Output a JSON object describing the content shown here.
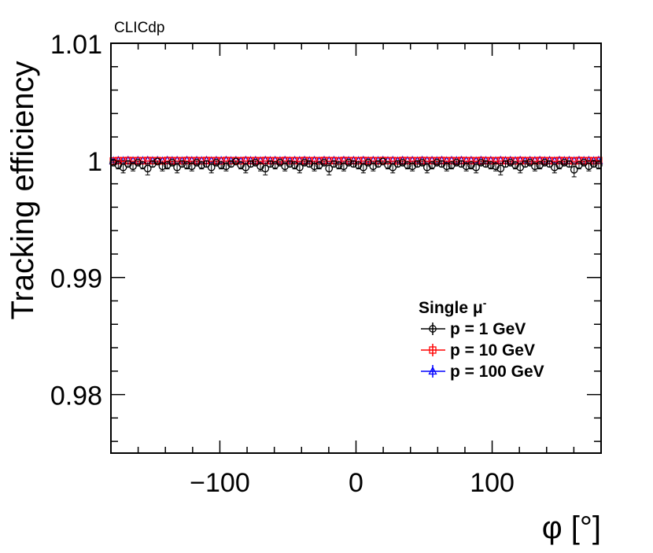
{
  "chart_data": {
    "type": "scatter",
    "experiment_label": "CLICdp",
    "xlabel": "φ [°]",
    "ylabel": "Tracking efficiency",
    "xlim": [
      -180,
      180
    ],
    "ylim": [
      0.975,
      1.01
    ],
    "x_ticks": [
      -100,
      0,
      100
    ],
    "x_tick_labels": [
      "−100",
      "0",
      "100"
    ],
    "y_ticks": [
      0.98,
      0.99,
      1.0,
      1.01
    ],
    "y_tick_labels": [
      "0.98",
      "0.99",
      "1",
      "1.01"
    ],
    "legend": {
      "title": "Single μ",
      "title_superscript": "-",
      "position": "center-right"
    },
    "bin_width_deg": 3.6,
    "series": [
      {
        "name": "p = 1 GeV",
        "color": "#000000",
        "marker": "open-circle",
        "values": [
          0.9998,
          0.9996,
          0.9994,
          0.9997,
          0.9995,
          0.9998,
          0.9996,
          0.9993,
          0.9997,
          0.9999,
          0.9995,
          0.9996,
          0.9998,
          0.9994,
          0.9997,
          0.9996,
          0.9995,
          0.9998,
          0.9996,
          0.9997,
          0.9994,
          0.9998,
          0.9996,
          0.9995,
          0.9997,
          0.9999,
          0.9996,
          0.9994,
          0.9997,
          0.9998,
          0.9995,
          0.9993,
          0.9997,
          0.9996,
          0.9998,
          0.9995,
          0.9997,
          0.9996,
          0.9994,
          0.9998,
          0.9997,
          0.9995,
          0.9996,
          0.9998,
          0.9993,
          0.9997,
          0.9996,
          0.9995,
          0.9998,
          0.9997,
          0.9996,
          0.9994,
          0.9998,
          0.9995,
          0.9997,
          0.9999,
          0.9996,
          0.9994,
          0.9997,
          0.9998,
          0.9996,
          0.9995,
          0.9997,
          0.9998,
          0.9994,
          0.9996,
          0.9998,
          0.9997,
          0.9995,
          0.9996,
          0.9998,
          0.9997,
          0.9995,
          0.9996,
          0.9994,
          0.9998,
          0.9997,
          0.9996,
          0.9995,
          0.9993,
          0.9997,
          0.9998,
          0.9996,
          0.9994,
          0.9997,
          0.9998,
          0.9995,
          0.9996,
          0.9998,
          0.9997,
          0.9994,
          0.9996,
          0.9998,
          0.9997,
          0.9992,
          0.9996,
          0.9998,
          0.9995,
          0.9997,
          0.9996
        ]
      },
      {
        "name": "p = 10 GeV",
        "color": "#ff0000",
        "marker": "open-square",
        "values": [
          0.99995,
          0.99998,
          0.99996,
          0.99999,
          0.99997,
          0.99998,
          0.99996,
          0.99999,
          0.99997,
          0.99998,
          0.99995,
          0.99999,
          0.99997,
          0.99998,
          0.99996,
          0.99999,
          0.99997,
          0.99998,
          0.99996,
          0.99999,
          0.99997,
          0.99998,
          0.99995,
          0.99999,
          0.99997,
          0.99998,
          0.99996,
          0.99999,
          0.99997,
          0.99998,
          0.99996,
          0.99999,
          0.99997,
          0.99998,
          0.99995,
          0.99999,
          0.99997,
          0.99998,
          0.99996,
          0.99999,
          0.99997,
          0.99998,
          0.99996,
          0.99999,
          0.99997,
          0.99998,
          0.99995,
          0.99999,
          0.99997,
          0.99998,
          0.99996,
          0.99999,
          0.99997,
          0.99998,
          0.99996,
          0.99999,
          0.99997,
          0.99998,
          0.99995,
          0.99999,
          0.99997,
          0.99998,
          0.99996,
          0.99999,
          0.99997,
          0.99998,
          0.99996,
          0.99999,
          0.99997,
          0.99998,
          0.99995,
          0.99999,
          0.99997,
          0.99998,
          0.99996,
          0.99999,
          0.99997,
          0.99998,
          0.99996,
          0.99999,
          0.99997,
          0.99998,
          0.99995,
          0.99999,
          0.99997,
          0.99998,
          0.99996,
          0.99999,
          0.99997,
          0.99998,
          0.99996,
          0.99999,
          0.99997,
          0.99998,
          0.99995,
          0.99999,
          0.99997,
          0.99998,
          0.99996,
          0.99999
        ]
      },
      {
        "name": "p = 100 GeV",
        "color": "#0000ff",
        "marker": "open-triangle",
        "values": [
          0.99993,
          0.99997,
          0.99995,
          0.99998,
          0.99994,
          0.99997,
          0.99996,
          0.99998,
          0.99995,
          0.99997,
          0.99993,
          0.99998,
          0.99996,
          0.99997,
          0.99994,
          0.99998,
          0.99996,
          0.99997,
          0.99995,
          0.99998,
          0.99994,
          0.99997,
          0.99996,
          0.99998,
          0.99995,
          0.99997,
          0.99993,
          0.99998,
          0.99996,
          0.99997,
          0.99994,
          0.99998,
          0.99996,
          0.99997,
          0.99995,
          0.99998,
          0.99994,
          0.99997,
          0.99996,
          0.99998,
          0.99995,
          0.99997,
          0.99993,
          0.99998,
          0.99996,
          0.99997,
          0.99994,
          0.99998,
          0.99996,
          0.99997,
          0.99995,
          0.99998,
          0.99994,
          0.99997,
          0.99996,
          0.99998,
          0.99995,
          0.99997,
          0.99993,
          0.99998,
          0.99996,
          0.99997,
          0.99994,
          0.99998,
          0.99996,
          0.99997,
          0.99995,
          0.99998,
          0.99994,
          0.99997,
          0.99996,
          0.99998,
          0.99995,
          0.99997,
          0.99993,
          0.99998,
          0.99996,
          0.99997,
          0.99994,
          0.99998,
          0.99996,
          0.99997,
          0.99995,
          0.99998,
          0.99994,
          0.99997,
          0.99996,
          0.99998,
          0.99995,
          0.99997,
          0.99993,
          0.99998,
          0.99996,
          0.99997,
          0.99994,
          0.99998,
          0.99996,
          0.99997,
          0.99995,
          0.99998
        ]
      }
    ]
  }
}
